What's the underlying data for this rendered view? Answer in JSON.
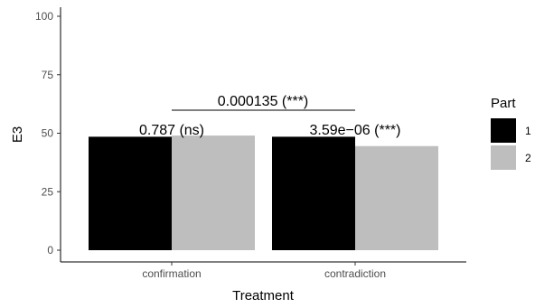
{
  "chart_data": {
    "type": "bar",
    "categories": [
      "confirmation",
      "contradiction"
    ],
    "series": [
      {
        "name": "1",
        "values": [
          48.5,
          48.5
        ],
        "color": "#000000"
      },
      {
        "name": "2",
        "values": [
          49.0,
          44.5
        ],
        "color": "#bebebe"
      }
    ],
    "xlabel": "Treatment",
    "ylabel": "E3",
    "ylim": [
      0,
      100
    ],
    "yticks": [
      0,
      25,
      50,
      75,
      100
    ],
    "legend": {
      "title": "Part",
      "placement": "right"
    },
    "grid": false,
    "annotations": {
      "within": [
        "0.787 (ns)",
        "3.59e−06 (***)"
      ],
      "between": "0.000135 (***)"
    }
  }
}
